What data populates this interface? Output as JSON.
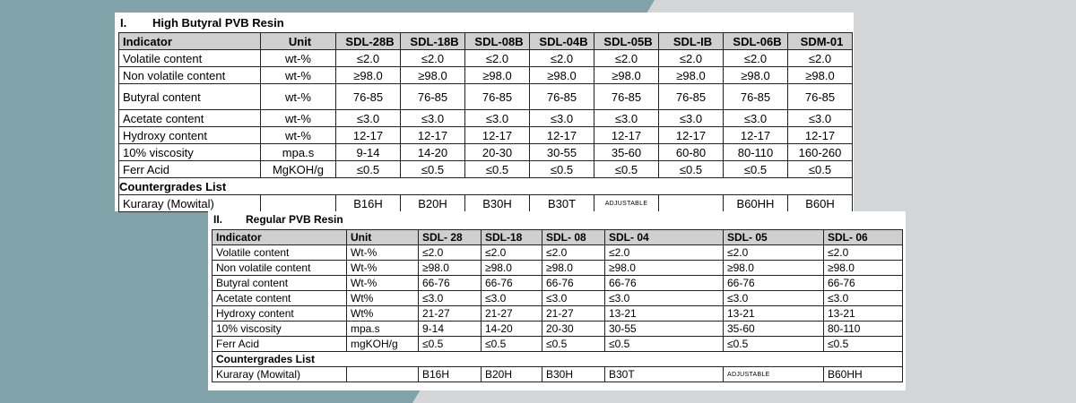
{
  "section1": {
    "number": "I.",
    "title": "High Butyral PVB Resin",
    "headers": [
      "Indicator",
      "Unit",
      "SDL-28B",
      "SDL-18B",
      "SDL-08B",
      "SDL-04B",
      "SDL-05B",
      "SDL-IB",
      "SDL-06B",
      "SDM-01"
    ],
    "rows": [
      {
        "indicator": "Volatile content",
        "unit": "wt-%",
        "values": [
          "≤2.0",
          "≤2.0",
          "≤2.0",
          "≤2.0",
          "≤2.0",
          "≤2.0",
          "≤2.0",
          "≤2.0"
        ]
      },
      {
        "indicator": "Non volatile content",
        "unit": "wt-%",
        "values": [
          "≥98.0",
          "≥98.0",
          "≥98.0",
          "≥98.0",
          "≥98.0",
          "≥98.0",
          "≥98.0",
          "≥98.0"
        ]
      },
      {
        "indicator": "Butyral content",
        "unit": "wt-%",
        "values": [
          "76-85",
          "76-85",
          "76-85",
          "76-85",
          "76-85",
          "76-85",
          "76-85",
          "76-85"
        ]
      },
      {
        "indicator": "Acetate content",
        "unit": "wt-%",
        "values": [
          "≤3.0",
          "≤3.0",
          "≤3.0",
          "≤3.0",
          "≤3.0",
          "≤3.0",
          "≤3.0",
          "≤3.0"
        ]
      },
      {
        "indicator": "Hydroxy content",
        "unit": "wt-%",
        "values": [
          "12-17",
          "12-17",
          "12-17",
          "12-17",
          "12-17",
          "12-17",
          "12-17",
          "12-17"
        ]
      },
      {
        "indicator": "10% viscosity",
        "unit": "mpa.s",
        "values": [
          "9-14",
          "14-20",
          "20-30",
          "30-55",
          "35-60",
          "60-80",
          "80-110",
          "160-260"
        ]
      },
      {
        "indicator": "Ferr Acid",
        "unit": "MgKOH/g",
        "values": [
          "≤0.5",
          "≤0.5",
          "≤0.5",
          "≤0.5",
          "≤0.5",
          "≤0.5",
          "≤0.5",
          "≤0.5"
        ]
      }
    ],
    "countergrades_label": "Countergrades List",
    "kuraray": {
      "indicator": "Kuraray (Mowital)",
      "unit": "",
      "values": [
        "B16H",
        "B20H",
        "B30H",
        "B30T",
        "ADJUSTABLE",
        "",
        "B60HH",
        "B60H"
      ]
    }
  },
  "section2": {
    "number": "II.",
    "title": "Regular PVB Resin",
    "headers": [
      "Indicator",
      "Unit",
      "SDL- 28",
      "SDL-18",
      "SDL- 08",
      "SDL- 04",
      "SDL- 05",
      "SDL- 06"
    ],
    "rows": [
      {
        "indicator": "Volatile content",
        "unit": "Wt-%",
        "values": [
          "≤2.0",
          "≤2.0",
          "≤2.0",
          "≤2.0",
          "≤2.0",
          "≤2.0"
        ]
      },
      {
        "indicator": "Non volatile content",
        "unit": "Wt-%",
        "values": [
          "≥98.0",
          "≥98.0",
          "≥98.0",
          "≥98.0",
          "≥98.0",
          "≥98.0"
        ]
      },
      {
        "indicator": "  Butyral content",
        "unit": "Wt-%",
        "values": [
          "66-76",
          "66-76",
          "66-76",
          "66-76",
          "66-76",
          "66-76"
        ]
      },
      {
        "indicator": "  Acetate content",
        "unit": "Wt%",
        "values": [
          "≤3.0",
          "≤3.0",
          "≤3.0",
          "≤3.0",
          "≤3.0",
          "≤3.0"
        ]
      },
      {
        "indicator": "Hydroxy content",
        "unit": "Wt%",
        "values": [
          "21-27",
          "21-27",
          "21-27",
          "13-21",
          "13-21",
          "13-21"
        ]
      },
      {
        "indicator": "10% viscosity",
        "unit": "mpa.s",
        "values": [
          "9-14",
          "14-20",
          "20-30",
          "30-55",
          "35-60",
          "80-110"
        ]
      },
      {
        "indicator": "Ferr Acid",
        "unit": "mgKOH/g",
        "values": [
          "≤0.5",
          "≤0.5",
          "≤0.5",
          "≤0.5",
          "≤0.5",
          "≤0.5"
        ]
      }
    ],
    "countergrades_label": "Countergrades List",
    "kuraray": {
      "indicator": "Kuraray (Mowital)",
      "unit": "",
      "values": [
        "B16H",
        "B20H",
        "B30H",
        "B30T",
        "ADJUSTABLE",
        "B60HH"
      ]
    }
  }
}
